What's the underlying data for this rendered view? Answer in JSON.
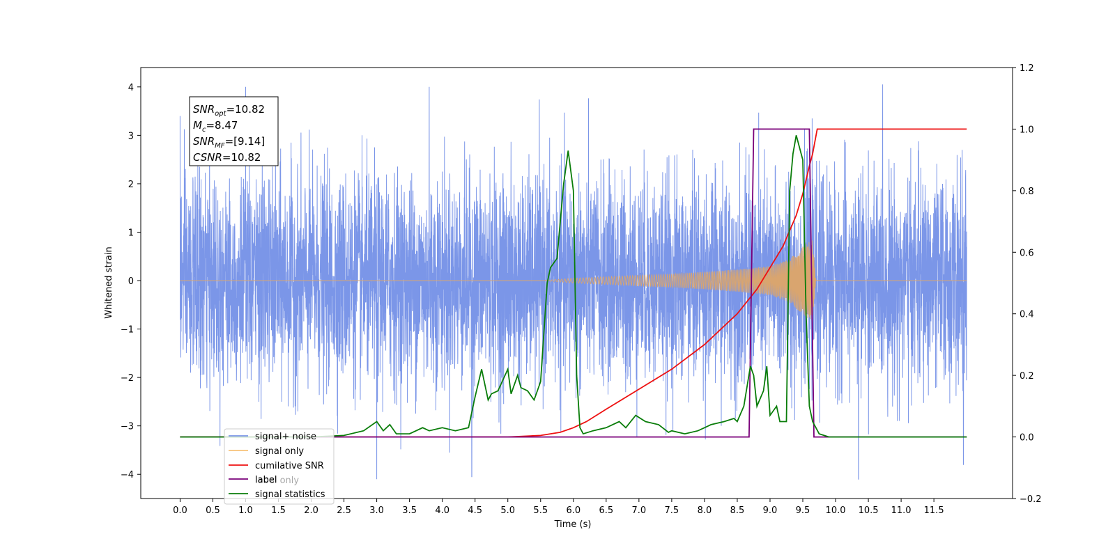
{
  "chart_data": {
    "type": "line",
    "title": "",
    "xlabel": "Time (s)",
    "ylabel": "Whitened strain",
    "y2label": "",
    "xlim": [
      -0.6,
      12.7
    ],
    "ylim": [
      -4.5,
      4.4
    ],
    "y2lim": [
      -0.2,
      1.2
    ],
    "x_ticks": [
      "0.0",
      "0.5",
      "1.0",
      "1.5",
      "2.0",
      "2.5",
      "3.0",
      "3.5",
      "4.0",
      "4.5",
      "5.0",
      "5.5",
      "6.0",
      "6.5",
      "7.0",
      "7.5",
      "8.0",
      "8.5",
      "9.0",
      "9.5",
      "10.0",
      "10.5",
      "11.0",
      "11.5"
    ],
    "y_ticks": [
      "4",
      "3",
      "2",
      "1",
      "0",
      "−1",
      "−2",
      "−3",
      "−4"
    ],
    "y2_ticks": [
      "1.2",
      "1.0",
      "0.8",
      "0.6",
      "0.4",
      "0.2",
      "0.0",
      "−0.2"
    ],
    "grid": false,
    "legend_position": "lower-left",
    "annotation": [
      {
        "base": "SNR",
        "sub": "opt",
        "rest": "=10.82"
      },
      {
        "base": "M",
        "sub": "c",
        "rest": "=8.47"
      },
      {
        "base": "SNR",
        "sub": "MF",
        "rest": "=[9.14]"
      },
      {
        "base": "CSNR",
        "sub": "",
        "rest": "=10.82"
      }
    ],
    "series": [
      {
        "name": "signal+ noise",
        "axis": "left",
        "color": "#7b96e8",
        "description": "whitened noise plus signal, roughly Gaussian, range about -4.1 to 4.0 over 0.0-12.0 s",
        "peaks": [
          [
            0.0,
            3.4
          ],
          [
            1.0,
            4.0
          ],
          [
            3.0,
            -4.1
          ],
          [
            3.8,
            4.0
          ],
          [
            4.45,
            -4.05
          ],
          [
            10.35,
            -4.1
          ],
          [
            11.95,
            -3.8
          ]
        ]
      },
      {
        "name": "signal only",
        "axis": "left",
        "color": "#d9a56f",
        "description": "chirp envelope growing from 0 at 5.5 s to about ±0.85 at 9.65 s, then 0",
        "envelope": {
          "x": [
            0.0,
            5.5,
            6.0,
            6.5,
            7.0,
            7.5,
            8.0,
            8.5,
            9.0,
            9.3,
            9.5,
            9.65,
            9.7,
            12.0
          ],
          "y": [
            0.0,
            0.0,
            0.05,
            0.08,
            0.11,
            0.14,
            0.18,
            0.23,
            0.3,
            0.45,
            0.7,
            0.85,
            0.0,
            0.0
          ]
        }
      },
      {
        "name": "cumilative SNR",
        "axis": "right",
        "color": "#ee1111",
        "x": [
          0.0,
          5.0,
          5.5,
          5.8,
          6.0,
          6.2,
          6.5,
          7.0,
          7.5,
          8.0,
          8.5,
          8.8,
          9.0,
          9.2,
          9.4,
          9.5,
          9.6,
          9.65,
          9.72,
          12.0
        ],
        "y": [
          0.0,
          0.0,
          0.005,
          0.015,
          0.03,
          0.05,
          0.09,
          0.155,
          0.22,
          0.3,
          0.4,
          0.48,
          0.55,
          0.62,
          0.72,
          0.79,
          0.88,
          0.92,
          1.0,
          1.0
        ]
      },
      {
        "name": "label",
        "axis": "right",
        "color": "#7a007a",
        "x": [
          0.0,
          8.68,
          8.75,
          9.6,
          9.67,
          12.0
        ],
        "y": [
          0.0,
          0.0,
          1.0,
          1.0,
          0.0,
          0.0
        ]
      },
      {
        "name": "label only",
        "axis": "right",
        "color": "#7a007a",
        "hidden": true,
        "x": [],
        "y": []
      },
      {
        "name": "signal statistics",
        "axis": "right",
        "color": "#0a7d0a",
        "x": [
          0.0,
          0.5,
          1.0,
          1.5,
          2.0,
          2.5,
          2.8,
          3.0,
          3.1,
          3.2,
          3.3,
          3.5,
          3.7,
          3.8,
          4.0,
          4.2,
          4.4,
          4.5,
          4.6,
          4.7,
          4.75,
          4.85,
          5.0,
          5.05,
          5.15,
          5.2,
          5.3,
          5.4,
          5.5,
          5.6,
          5.65,
          5.75,
          5.85,
          5.92,
          6.0,
          6.05,
          6.1,
          6.15,
          6.3,
          6.5,
          6.7,
          6.8,
          6.95,
          7.1,
          7.3,
          7.45,
          7.5,
          7.7,
          7.9,
          8.1,
          8.3,
          8.45,
          8.5,
          8.6,
          8.7,
          8.75,
          8.8,
          8.9,
          8.95,
          9.0,
          9.1,
          9.15,
          9.25,
          9.3,
          9.35,
          9.4,
          9.45,
          9.5,
          9.55,
          9.6,
          9.65,
          9.75,
          9.9,
          12.0
        ],
        "y": [
          0.0,
          0.0,
          0.0,
          0.0,
          0.0,
          0.005,
          0.02,
          0.05,
          0.02,
          0.04,
          0.01,
          0.01,
          0.03,
          0.02,
          0.03,
          0.02,
          0.03,
          0.13,
          0.22,
          0.12,
          0.14,
          0.15,
          0.22,
          0.14,
          0.2,
          0.16,
          0.15,
          0.12,
          0.18,
          0.5,
          0.55,
          0.58,
          0.82,
          0.93,
          0.8,
          0.2,
          0.03,
          0.01,
          0.02,
          0.03,
          0.05,
          0.03,
          0.07,
          0.05,
          0.04,
          0.015,
          0.02,
          0.01,
          0.02,
          0.04,
          0.05,
          0.06,
          0.05,
          0.1,
          0.23,
          0.2,
          0.1,
          0.15,
          0.23,
          0.07,
          0.1,
          0.05,
          0.05,
          0.8,
          0.92,
          0.98,
          0.94,
          0.9,
          0.4,
          0.1,
          0.05,
          0.01,
          0.0,
          0.0
        ]
      }
    ]
  }
}
